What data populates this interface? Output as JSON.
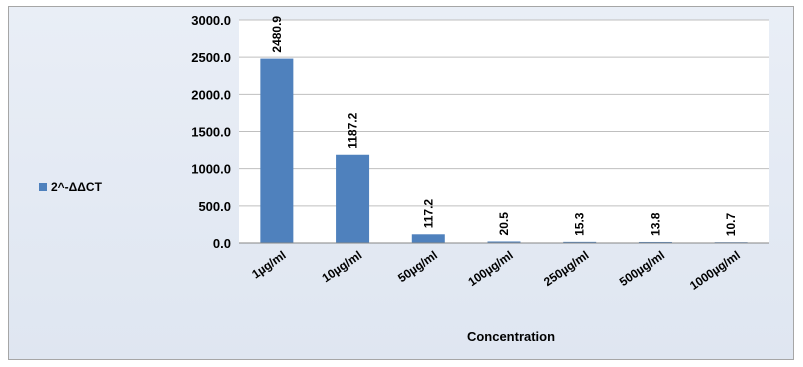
{
  "chart_data": {
    "type": "bar",
    "categories": [
      "1µg/ml",
      "10µg/ml",
      "50µg/ml",
      "100µg/ml",
      "250µg/ml",
      "500µg/ml",
      "1000µg/ml"
    ],
    "series": [
      {
        "name": "2^-ΔΔCT",
        "values": [
          2480.9,
          1187.2,
          117.2,
          20.5,
          15.3,
          13.8,
          10.7
        ],
        "data_labels": [
          "2480.9",
          "1187.2",
          "117.2",
          "20.5",
          "15.3",
          "13.8",
          "10.7"
        ],
        "color": "#4f81bd"
      }
    ],
    "xlabel": "Concentration",
    "ylabel": "",
    "ylim": [
      0,
      3000
    ],
    "yticks": [
      0,
      500,
      1000,
      1500,
      2000,
      2500,
      3000
    ],
    "ytick_labels": [
      "0.0",
      "500.0",
      "1000.0",
      "1500.0",
      "2000.0",
      "2500.0",
      "3000.0"
    ],
    "grid": true,
    "legend_position": "left",
    "colors": {
      "plot_background": "#ffffff",
      "frame_background": "#e4eaf4",
      "gridline": "#bfbfbf"
    }
  }
}
